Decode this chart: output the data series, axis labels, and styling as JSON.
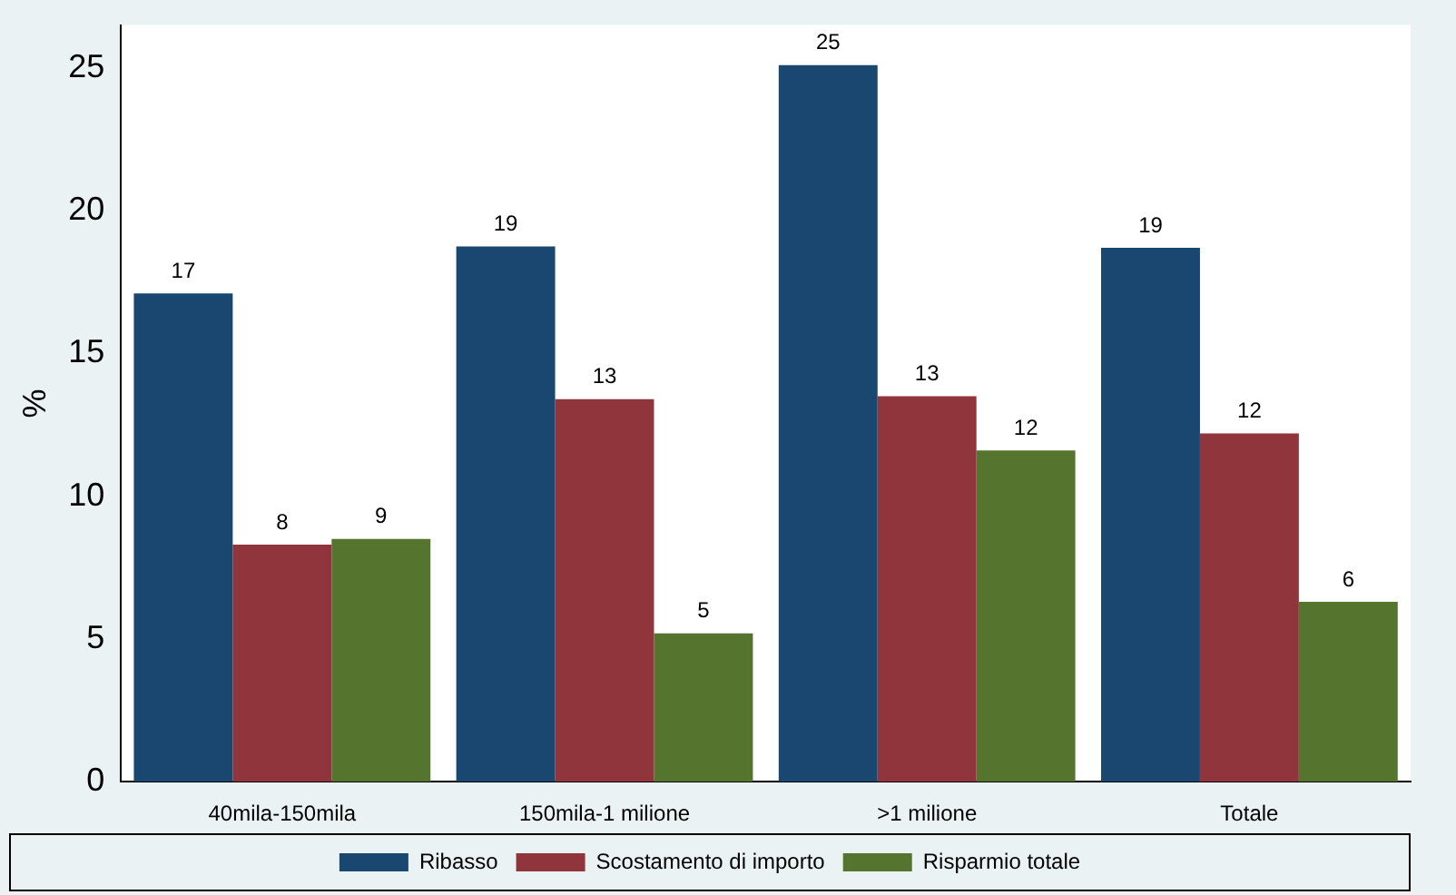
{
  "chart_data": {
    "type": "bar",
    "ylabel": "%",
    "categories": [
      "40mila-150mila",
      "150mila-1 milione",
      ">1 milione",
      "Totale"
    ],
    "series": [
      {
        "name": "Ribasso",
        "color": "#1a476f",
        "values": [
          17.1,
          18.75,
          25.1,
          18.7
        ],
        "value_labels": [
          "17",
          "19",
          "25",
          "19"
        ]
      },
      {
        "name": "Scostamento di importo",
        "color": "#90353b",
        "values": [
          8.3,
          13.4,
          13.5,
          12.2
        ],
        "value_labels": [
          "8",
          "13",
          "13",
          "12"
        ]
      },
      {
        "name": "Risparmio totale",
        "color": "#55752f",
        "values": [
          8.5,
          5.2,
          11.6,
          6.3
        ],
        "value_labels": [
          "9",
          "5",
          "12",
          "6"
        ]
      }
    ],
    "ylim": [
      0,
      26.5
    ],
    "yticks": [
      0,
      5,
      10,
      15,
      20,
      25
    ],
    "grid": false,
    "legend": "bottom"
  }
}
